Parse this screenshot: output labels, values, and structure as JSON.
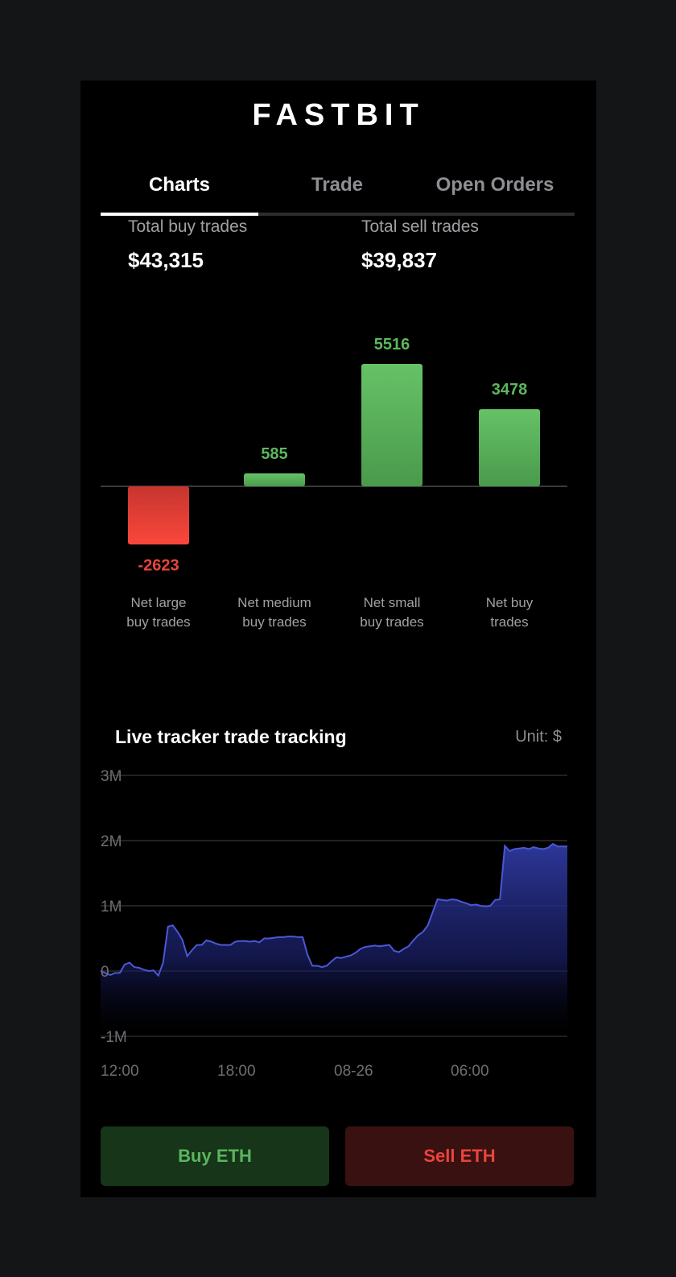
{
  "app": {
    "title": "FASTBIT"
  },
  "tabs": [
    {
      "label": "Charts",
      "active": true
    },
    {
      "label": "Trade",
      "active": false
    },
    {
      "label": "Open Orders",
      "active": false
    }
  ],
  "totals": {
    "buy": {
      "label": "Total buy trades",
      "value": "$43,315"
    },
    "sell": {
      "label": "Total sell trades",
      "value": "$39,837"
    }
  },
  "chart_data": [
    {
      "type": "bar",
      "categories": [
        "Net large buy trades",
        "Net medium buy trades",
        "Net small buy trades",
        "Net buy trades"
      ],
      "category_lines": [
        [
          "Net large",
          "buy trades"
        ],
        [
          "Net medium",
          "buy trades"
        ],
        [
          "Net small",
          "buy trades"
        ],
        [
          "Net buy",
          "trades"
        ]
      ],
      "values": [
        -2623,
        585,
        5516,
        3478
      ],
      "data_labels": [
        "-2623",
        "585",
        "5516",
        "3478"
      ],
      "colors": {
        "positive": "#5cb85c",
        "negative": "#e8453c"
      }
    },
    {
      "type": "area",
      "title": "Live tracker trade tracking",
      "unit_label": "Unit: $",
      "ylim": [
        -1000000,
        3000000
      ],
      "y_ticks": [
        {
          "value": 3000000,
          "label": "3M"
        },
        {
          "value": 2000000,
          "label": "2M"
        },
        {
          "value": 1000000,
          "label": "1M"
        },
        {
          "value": 0,
          "label": "0"
        },
        {
          "value": -1000000,
          "label": "-1M"
        }
      ],
      "x_ticks": [
        "12:00",
        "18:00",
        "08-26",
        "06:00"
      ],
      "grid": true,
      "color": "#4b57d6",
      "values": [
        0,
        -30000,
        -60000,
        -30000,
        -30000,
        100000,
        130000,
        60000,
        50000,
        20000,
        0,
        10000,
        -70000,
        130000,
        680000,
        700000,
        600000,
        480000,
        230000,
        320000,
        400000,
        400000,
        470000,
        450000,
        420000,
        400000,
        400000,
        400000,
        450000,
        460000,
        460000,
        450000,
        460000,
        440000,
        500000,
        500000,
        510000,
        520000,
        520000,
        530000,
        530000,
        520000,
        520000,
        250000,
        80000,
        80000,
        60000,
        80000,
        150000,
        210000,
        200000,
        220000,
        240000,
        280000,
        340000,
        370000,
        380000,
        390000,
        380000,
        390000,
        400000,
        310000,
        290000,
        340000,
        380000,
        470000,
        550000,
        600000,
        700000,
        900000,
        1100000,
        1090000,
        1080000,
        1100000,
        1090000,
        1060000,
        1040000,
        1010000,
        1020000,
        1000000,
        990000,
        1000000,
        1090000,
        1100000,
        1920000,
        1840000,
        1870000,
        1880000,
        1890000,
        1870000,
        1900000,
        1880000,
        1870000,
        1890000,
        1950000,
        1910000,
        1910000,
        1910000
      ]
    }
  ],
  "actions": {
    "buy_label": "Buy ETH",
    "sell_label": "Sell ETH"
  }
}
